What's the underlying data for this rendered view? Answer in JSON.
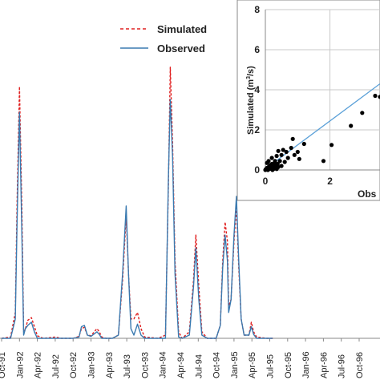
{
  "chart_data": [
    {
      "type": "line",
      "title": "",
      "xlabel": "",
      "ylabel": "",
      "categories": [
        "Oct-91",
        "Jan-92",
        "Apr-92",
        "Jul-92",
        "Oct-92",
        "Jan-93",
        "Apr-93",
        "Jul-93",
        "Oct-93",
        "Jan-94",
        "Apr-94",
        "Jul-94",
        "Oct-94",
        "Jan-95",
        "Apr-95",
        "Jul-95",
        "Oct-95",
        "Jan-96",
        "Apr-96",
        "Jul-96",
        "Oct-96"
      ],
      "ylim": [
        0,
        3.9
      ],
      "series": [
        {
          "name": "Simulated",
          "color": "#e02020",
          "dash": "dashed",
          "points": [
            [
              0.0,
              0.0
            ],
            [
              1.5,
              0.02
            ],
            [
              2.3,
              0.4
            ],
            [
              2.6,
              2.1
            ],
            [
              3.0,
              3.9
            ],
            [
              3.4,
              2.0
            ],
            [
              3.7,
              0.1
            ],
            [
              4.0,
              0.15
            ],
            [
              4.4,
              0.28
            ],
            [
              5.0,
              0.32
            ],
            [
              5.5,
              0.18
            ],
            [
              6.0,
              0.04
            ],
            [
              7.0,
              0.0
            ],
            [
              9.0,
              0.02
            ],
            [
              10.0,
              0.0
            ],
            [
              12.0,
              0.0
            ],
            [
              13.0,
              0.03
            ],
            [
              13.4,
              0.15
            ],
            [
              13.9,
              0.17
            ],
            [
              14.4,
              0.05
            ],
            [
              15.0,
              0.04
            ],
            [
              16.0,
              0.15
            ],
            [
              16.4,
              0.1
            ],
            [
              16.8,
              0.02
            ],
            [
              17.5,
              0.0
            ],
            [
              18.6,
              0.0
            ],
            [
              19.6,
              0.05
            ],
            [
              20.3,
              0.9
            ],
            [
              20.9,
              1.9
            ],
            [
              21.3,
              1.0
            ],
            [
              21.7,
              0.3
            ],
            [
              22.2,
              0.3
            ],
            [
              22.8,
              0.4
            ],
            [
              23.4,
              0.15
            ],
            [
              24.0,
              0.02
            ],
            [
              26.3,
              0.0
            ],
            [
              27.5,
              0.05
            ],
            [
              28.0,
              2.4
            ],
            [
              28.3,
              4.2
            ],
            [
              28.7,
              3.0
            ],
            [
              29.1,
              1.2
            ],
            [
              29.7,
              0.1
            ],
            [
              30.3,
              0.0
            ],
            [
              31.5,
              0.1
            ],
            [
              32.2,
              0.9
            ],
            [
              32.6,
              1.6
            ],
            [
              33.1,
              0.8
            ],
            [
              33.6,
              0.1
            ],
            [
              34.5,
              0.0
            ],
            [
              36.0,
              0.0
            ],
            [
              36.7,
              0.2
            ],
            [
              37.1,
              1.2
            ],
            [
              37.5,
              1.8
            ],
            [
              37.9,
              1.5
            ],
            [
              38.1,
              0.5
            ],
            [
              38.5,
              0.6
            ],
            [
              39.0,
              1.5
            ],
            [
              39.4,
              2.05
            ],
            [
              39.8,
              1.1
            ],
            [
              40.2,
              0.3
            ],
            [
              40.7,
              0.05
            ],
            [
              41.5,
              0.05
            ],
            [
              41.9,
              0.25
            ],
            [
              42.3,
              0.1
            ],
            [
              42.8,
              0.02
            ],
            [
              44.5,
              0.0
            ],
            [
              45.5,
              0.0
            ]
          ]
        },
        {
          "name": "Observed",
          "color": "#3a7ab0",
          "dash": "solid",
          "points": [
            [
              0.0,
              0.0
            ],
            [
              1.5,
              0.0
            ],
            [
              2.3,
              0.3
            ],
            [
              2.6,
              1.8
            ],
            [
              3.0,
              3.5
            ],
            [
              3.4,
              1.6
            ],
            [
              3.7,
              0.05
            ],
            [
              4.0,
              0.15
            ],
            [
              4.4,
              0.2
            ],
            [
              5.0,
              0.25
            ],
            [
              5.5,
              0.1
            ],
            [
              6.0,
              0.0
            ],
            [
              7.0,
              0.0
            ],
            [
              9.0,
              0.0
            ],
            [
              10.0,
              0.0
            ],
            [
              12.0,
              0.0
            ],
            [
              13.0,
              0.02
            ],
            [
              13.4,
              0.18
            ],
            [
              13.9,
              0.2
            ],
            [
              14.4,
              0.05
            ],
            [
              15.0,
              0.03
            ],
            [
              16.0,
              0.1
            ],
            [
              16.4,
              0.06
            ],
            [
              16.8,
              0.0
            ],
            [
              17.5,
              0.0
            ],
            [
              18.6,
              0.0
            ],
            [
              19.6,
              0.05
            ],
            [
              20.3,
              1.0
            ],
            [
              20.9,
              2.05
            ],
            [
              21.3,
              1.0
            ],
            [
              21.7,
              0.15
            ],
            [
              22.2,
              0.05
            ],
            [
              22.8,
              0.22
            ],
            [
              23.4,
              0.05
            ],
            [
              24.0,
              0.0
            ],
            [
              26.3,
              0.0
            ],
            [
              27.5,
              0.0
            ],
            [
              28.0,
              2.5
            ],
            [
              28.3,
              3.7
            ],
            [
              28.7,
              2.8
            ],
            [
              29.1,
              1.0
            ],
            [
              29.7,
              0.02
            ],
            [
              30.3,
              0.0
            ],
            [
              31.5,
              0.05
            ],
            [
              32.2,
              0.8
            ],
            [
              32.6,
              1.4
            ],
            [
              33.1,
              0.6
            ],
            [
              33.6,
              0.05
            ],
            [
              34.5,
              0.0
            ],
            [
              36.0,
              0.0
            ],
            [
              36.7,
              0.2
            ],
            [
              37.1,
              1.1
            ],
            [
              37.5,
              1.6
            ],
            [
              37.9,
              1.2
            ],
            [
              38.1,
              0.4
            ],
            [
              38.5,
              0.6
            ],
            [
              39.0,
              1.6
            ],
            [
              39.4,
              2.2
            ],
            [
              39.8,
              1.2
            ],
            [
              40.2,
              0.3
            ],
            [
              40.7,
              0.05
            ],
            [
              41.5,
              0.05
            ],
            [
              41.9,
              0.18
            ],
            [
              42.3,
              0.06
            ],
            [
              42.8,
              0.0
            ],
            [
              44.5,
              0.0
            ],
            [
              45.5,
              0.0
            ]
          ]
        }
      ],
      "legend": {
        "placement": "top-left-center",
        "entries": [
          "Simulated",
          "Observed"
        ]
      }
    },
    {
      "type": "scatter",
      "title": "",
      "xlabel": "Obs",
      "ylabel": "Simulated (m³/s)",
      "ylabel_plain": "Simulated (m",
      "ylabel_sup": "3",
      "ylabel_end": "/s)",
      "xlim": [
        0,
        3.55
      ],
      "ylim": [
        0,
        8
      ],
      "xticks": [
        "0",
        "2"
      ],
      "yticks": [
        "0",
        "2",
        "4",
        "6",
        "8"
      ],
      "grid": true,
      "trendline": {
        "color": "#5aa0d8",
        "from": [
          0,
          0.05
        ],
        "to": [
          3.55,
          4.3
        ]
      },
      "points": [
        [
          0.0,
          0.0
        ],
        [
          0.02,
          0.05
        ],
        [
          0.05,
          0.1
        ],
        [
          0.05,
          0.35
        ],
        [
          0.08,
          0.0
        ],
        [
          0.1,
          0.15
        ],
        [
          0.1,
          0.45
        ],
        [
          0.12,
          0.05
        ],
        [
          0.15,
          0.25
        ],
        [
          0.18,
          0.1
        ],
        [
          0.2,
          0.3
        ],
        [
          0.2,
          0.6
        ],
        [
          0.22,
          0.0
        ],
        [
          0.25,
          0.05
        ],
        [
          0.25,
          0.2
        ],
        [
          0.28,
          0.35
        ],
        [
          0.3,
          0.1
        ],
        [
          0.3,
          0.45
        ],
        [
          0.32,
          0.2
        ],
        [
          0.35,
          0.05
        ],
        [
          0.35,
          0.7
        ],
        [
          0.38,
          0.3
        ],
        [
          0.4,
          0.15
        ],
        [
          0.4,
          0.95
        ],
        [
          0.45,
          0.45
        ],
        [
          0.5,
          0.2
        ],
        [
          0.5,
          0.75
        ],
        [
          0.55,
          1.0
        ],
        [
          0.6,
          0.4
        ],
        [
          0.65,
          0.9
        ],
        [
          0.7,
          0.6
        ],
        [
          0.8,
          1.1
        ],
        [
          0.85,
          1.55
        ],
        [
          0.9,
          0.75
        ],
        [
          1.0,
          0.9
        ],
        [
          1.05,
          0.55
        ],
        [
          1.2,
          1.3
        ],
        [
          1.8,
          0.45
        ],
        [
          2.05,
          1.25
        ],
        [
          2.65,
          2.2
        ],
        [
          3.0,
          2.85
        ],
        [
          3.4,
          3.7
        ],
        [
          3.55,
          3.65
        ]
      ]
    }
  ]
}
